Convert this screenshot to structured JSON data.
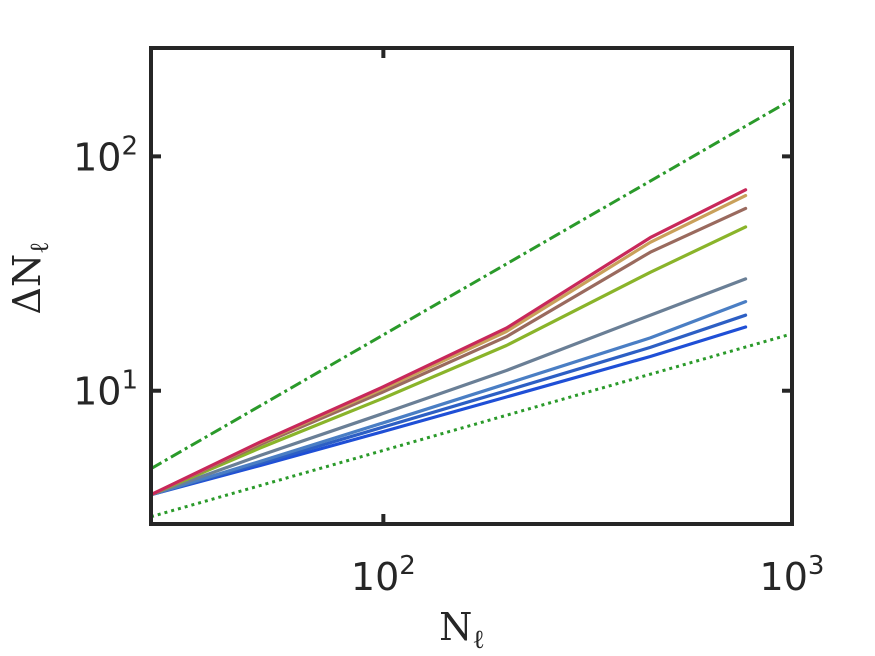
{
  "chart_data": {
    "type": "line",
    "title": "",
    "xlabel": "N",
    "xlabel_sub": "ℓ",
    "ylabel": "ΔN",
    "ylabel_sub": "ℓ",
    "xscale": "log",
    "yscale": "log",
    "xlim": [
      27,
      1000
    ],
    "ylim": [
      2.7,
      290
    ],
    "grid": false,
    "legend": "none",
    "xticks": [
      {
        "base": "10",
        "exp": "2",
        "value": 100
      },
      {
        "base": "10",
        "exp": "3",
        "value": 1000
      }
    ],
    "yticks": [
      {
        "base": "10",
        "exp": "1",
        "value": 10
      },
      {
        "base": "10",
        "exp": "2",
        "value": 100
      }
    ],
    "series": [
      {
        "color": "#1f4fd6",
        "x": [
          27,
          50,
          100,
          200,
          450,
          770
        ],
        "y": [
          3.6,
          4.8,
          6.7,
          9.4,
          14.0,
          18.7
        ]
      },
      {
        "color": "#2d5fc4",
        "x": [
          27,
          50,
          100,
          200,
          450,
          770
        ],
        "y": [
          3.6,
          4.9,
          7.0,
          10.0,
          15.3,
          21.0
        ]
      },
      {
        "color": "#4a7ec4",
        "x": [
          27,
          50,
          100,
          200,
          450,
          770
        ],
        "y": [
          3.6,
          5.0,
          7.3,
          10.7,
          16.8,
          24.0
        ]
      },
      {
        "color": "#6a7f96",
        "x": [
          27,
          50,
          100,
          200,
          450,
          770
        ],
        "y": [
          3.6,
          5.3,
          8.0,
          12.2,
          21.0,
          30.0
        ]
      },
      {
        "color": "#8ab42a",
        "x": [
          27,
          50,
          100,
          200,
          450,
          770
        ],
        "y": [
          3.6,
          5.7,
          9.3,
          15.6,
          32.0,
          50.0
        ]
      },
      {
        "color": "#9a6a5e",
        "x": [
          27,
          50,
          100,
          200,
          450,
          770
        ],
        "y": [
          3.6,
          5.9,
          9.9,
          17.0,
          39.0,
          60.0
        ]
      },
      {
        "color": "#c9a05a",
        "x": [
          27,
          50,
          100,
          200,
          450,
          770
        ],
        "y": [
          3.6,
          6.0,
          10.2,
          17.9,
          43.0,
          68.0
        ]
      },
      {
        "color": "#c8285a",
        "x": [
          27,
          50,
          100,
          200,
          450,
          770
        ],
        "y": [
          3.6,
          6.05,
          10.4,
          18.5,
          45.0,
          72.0
        ]
      }
    ],
    "reference_lines": [
      {
        "style": "dash-dot",
        "color": "#2a9a2a",
        "x": [
          27,
          1000
        ],
        "y": [
          4.65,
          175
        ]
      },
      {
        "style": "dotted",
        "color": "#2a9a2a",
        "x": [
          27,
          1000
        ],
        "y": [
          2.9,
          17.5
        ]
      }
    ]
  }
}
